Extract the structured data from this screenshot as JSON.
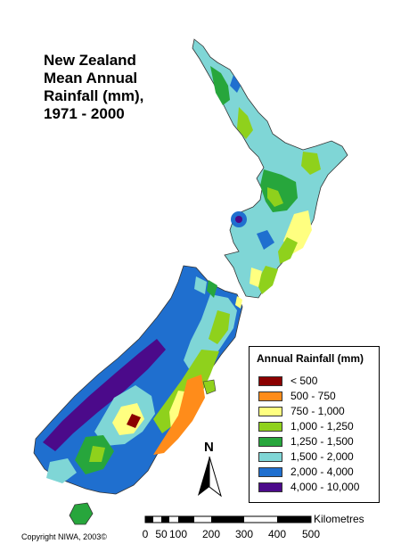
{
  "title": {
    "lines": [
      "New Zealand",
      "Mean Annual",
      "Rainfall (mm),",
      "1971 - 2000"
    ]
  },
  "legend": {
    "title": "Annual Rainfall (mm)",
    "items": [
      {
        "label": "< 500",
        "color": "#8b0000"
      },
      {
        "label": "500 - 750",
        "color": "#ff8c1a"
      },
      {
        "label": "750 - 1,000",
        "color": "#ffff80"
      },
      {
        "label": "1,000 - 1,250",
        "color": "#8fd11c"
      },
      {
        "label": "1,250 - 1,500",
        "color": "#27a63c"
      },
      {
        "label": "1,500 - 2,000",
        "color": "#7fd6d6"
      },
      {
        "label": "2,000 - 4,000",
        "color": "#1f6fcf"
      },
      {
        "label": "4,000 - 10,000",
        "color": "#4b0a8a"
      }
    ]
  },
  "north_arrow": {
    "label": "N"
  },
  "scale_bar": {
    "unit": "Kilometres",
    "ticks": [
      "0",
      "50",
      "100",
      "200",
      "300",
      "400",
      "500"
    ]
  },
  "copyright": "Copyright NIWA, 2003©"
}
